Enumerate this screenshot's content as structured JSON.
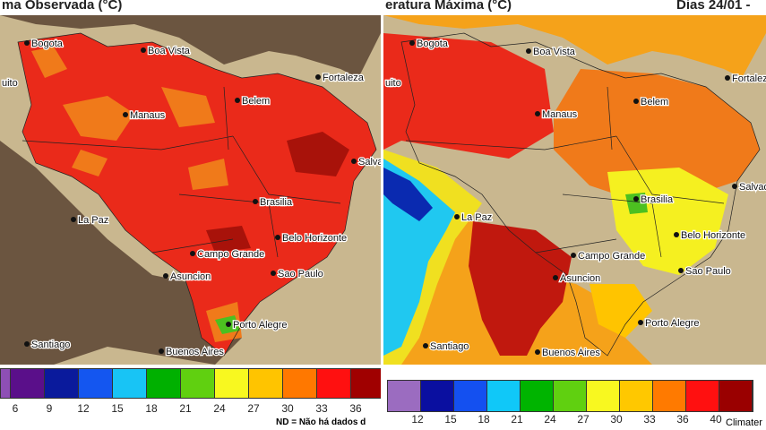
{
  "left": {
    "title": "ma Observada (°C)",
    "cities": [
      "Bogota",
      "Boa Vista",
      "Manaus",
      "Belem",
      "Fortaleza",
      "Salvador",
      "Brasilia",
      "La Paz",
      "Belo Horizonte",
      "Campo Grande",
      "Sao Paulo",
      "Asuncion",
      "Porto Alegre",
      "Santiago",
      "Buenos Aires",
      "uito"
    ],
    "legend_colors": [
      "#8e4fb5",
      "#5a0f8a",
      "#0a1a9c",
      "#1456f0",
      "#18c4f5",
      "#00b000",
      "#60d010",
      "#f8f820",
      "#ffc400",
      "#ff7800",
      "#ff1010",
      "#a00000"
    ],
    "legend_ticks": [
      "6",
      "9",
      "12",
      "15",
      "18",
      "21",
      "24",
      "27",
      "30",
      "33",
      "36"
    ],
    "note": "ND = Não há dados d"
  },
  "right": {
    "title": "eratura Máxima (°C)",
    "date": "Dias 24/01 -",
    "cities": [
      "Bogota",
      "Boa Vista",
      "Manaus",
      "Belem",
      "Fortaleza",
      "Salvador",
      "Brasilia",
      "La Paz",
      "Belo Horizonte",
      "Campo Grande",
      "Sao Paulo",
      "Asuncion",
      "Porto Alegre",
      "Santiago",
      "Buenos Aires",
      "uito"
    ],
    "legend_colors": [
      "#9b6cc0",
      "#0a0fa0",
      "#1450f0",
      "#10c8f8",
      "#00b400",
      "#60d010",
      "#f8f820",
      "#ffc800",
      "#ff7a00",
      "#ff1010",
      "#9a0000"
    ],
    "legend_ticks": [
      "12",
      "15",
      "18",
      "21",
      "24",
      "27",
      "30",
      "33",
      "36",
      "40"
    ],
    "credit": "Climater"
  }
}
